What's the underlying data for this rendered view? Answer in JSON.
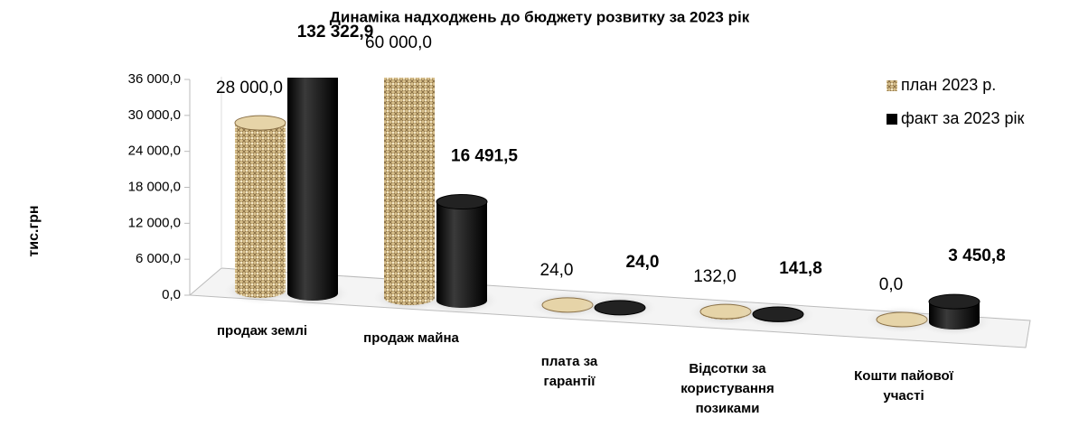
{
  "chart_data": {
    "type": "bar3d",
    "title": "Динаміка надходжень до бюджету розвитку за 2023 рік",
    "y_label": "тис.грн",
    "categories": [
      "продаж землі",
      "продаж майна",
      "плата за гарантії",
      "Відсотки за користування позиками",
      "Кошти пайової участі"
    ],
    "series": [
      {
        "name": "план 2023 р.",
        "color": "#c9ad74",
        "values": [
          28000,
          60000,
          24,
          132,
          0
        ],
        "value_labels": [
          "28 000,0",
          "60 000,0",
          "24,0",
          "132,0",
          "0,0"
        ]
      },
      {
        "name": "факт за  2023 рік",
        "color": "#000000",
        "values": [
          132322.9,
          16491.5,
          24,
          141.8,
          3450.8
        ],
        "value_labels": [
          "132 322,9",
          "16 491,5",
          "24,0",
          "141,8",
          "3 450,8"
        ]
      }
    ],
    "ylim": [
      0,
      36000
    ],
    "yticks": [
      {
        "value": 0,
        "label": "0,0"
      },
      {
        "value": 6000,
        "label": "6 000,0"
      },
      {
        "value": 12000,
        "label": "12 000,0"
      },
      {
        "value": 18000,
        "label": "18 000,0"
      },
      {
        "value": 24000,
        "label": "24 000,0"
      },
      {
        "value": 30000,
        "label": "30 000,0"
      },
      {
        "value": 36000,
        "label": "36 000,0"
      }
    ],
    "legend": "right"
  }
}
